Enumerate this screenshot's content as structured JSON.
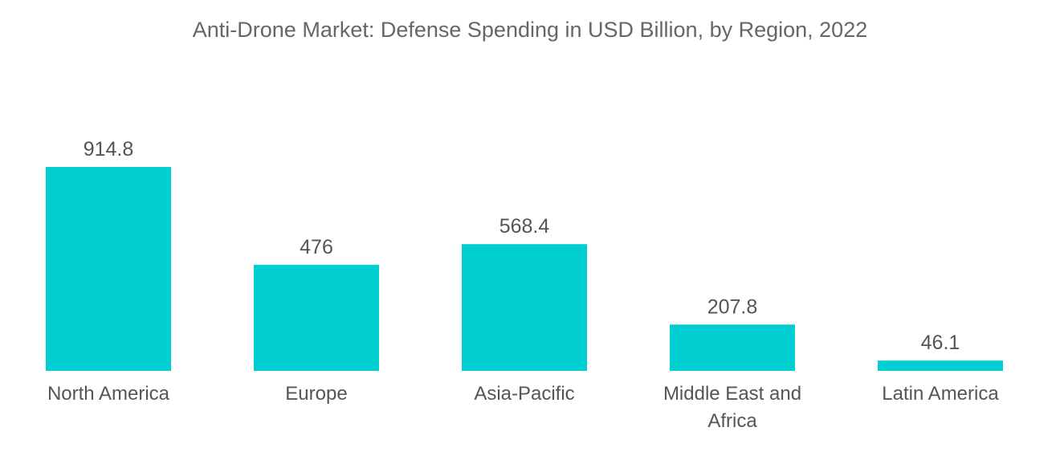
{
  "chart_data": {
    "type": "bar",
    "title": "Anti-Drone Market: Defense Spending in USD Billion, by Region, 2022",
    "categories": [
      "North America",
      "Europe",
      "Asia-Pacific",
      "Middle East and Africa",
      "Latin America"
    ],
    "values": [
      914.8,
      476,
      568.4,
      207.8,
      46.1
    ],
    "data_labels": [
      "914.8",
      "476",
      "568.4",
      "207.8",
      "46.1"
    ],
    "xlabel": "",
    "ylabel": "",
    "ylim": [
      0,
      914.8
    ],
    "grid": false,
    "legend": "none",
    "bar_color": "#00CED1",
    "label_color": "#555555",
    "title_color": "#666666"
  }
}
